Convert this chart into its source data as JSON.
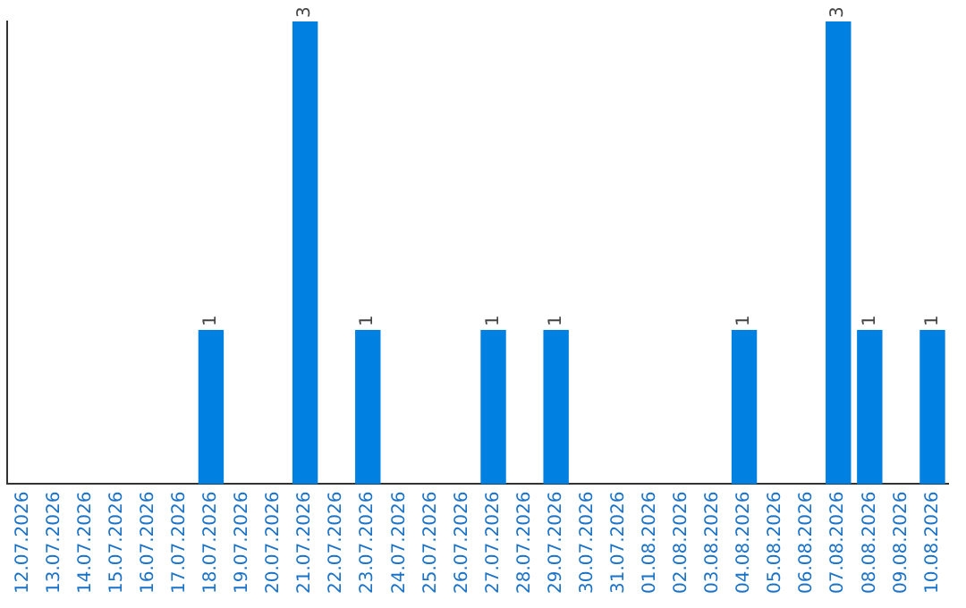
{
  "chart_data": {
    "type": "bar",
    "categories": [
      "12.07.2026",
      "13.07.2026",
      "14.07.2026",
      "15.07.2026",
      "16.07.2026",
      "17.07.2026",
      "18.07.2026",
      "19.07.2026",
      "20.07.2026",
      "21.07.2026",
      "22.07.2026",
      "23.07.2026",
      "24.07.2026",
      "25.07.2026",
      "26.07.2026",
      "27.07.2026",
      "28.07.2026",
      "29.07.2026",
      "30.07.2026",
      "31.07.2026",
      "01.08.2026",
      "02.08.2026",
      "03.08.2026",
      "04.08.2026",
      "05.08.2026",
      "06.08.2026",
      "07.08.2026",
      "08.08.2026",
      "09.08.2026",
      "10.08.2026"
    ],
    "values": [
      0,
      0,
      0,
      0,
      0,
      0,
      1,
      0,
      0,
      3,
      0,
      1,
      0,
      0,
      0,
      1,
      0,
      1,
      0,
      0,
      0,
      0,
      0,
      1,
      0,
      0,
      3,
      1,
      0,
      1
    ],
    "value_labels": [
      null,
      null,
      null,
      null,
      null,
      null,
      "1",
      null,
      null,
      "3",
      null,
      "1",
      null,
      null,
      null,
      "1",
      null,
      "1",
      null,
      null,
      null,
      null,
      null,
      "1",
      null,
      null,
      "3",
      "1",
      null,
      "1"
    ],
    "color": "#0080e0",
    "ylim": [
      0,
      3
    ],
    "grid": false,
    "legend": false,
    "tick_labels": "x"
  }
}
